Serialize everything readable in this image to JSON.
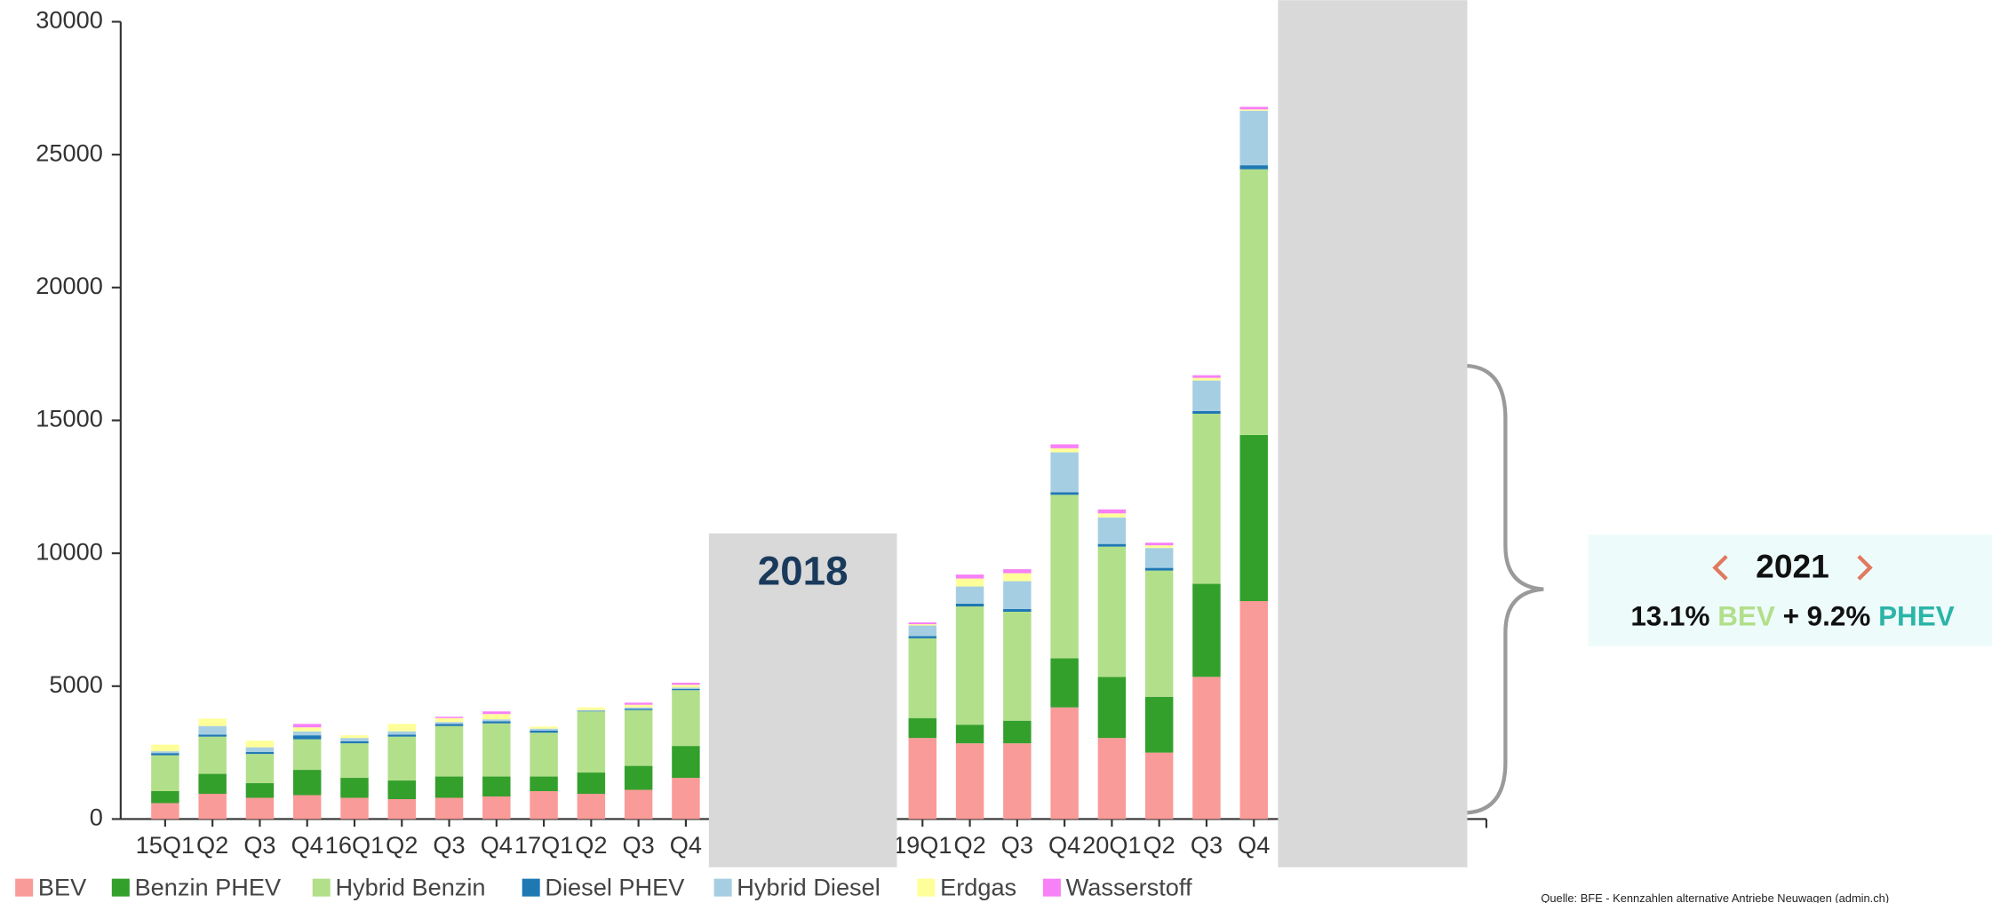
{
  "chart_data": {
    "type": "bar",
    "stacked": true,
    "categories": [
      "15Q1",
      "Q2",
      "Q3",
      "Q4",
      "16Q1",
      "Q2",
      "Q3",
      "Q4",
      "17Q1",
      "Q2",
      "Q3",
      "Q4",
      null,
      null,
      null,
      null,
      "19Q1",
      "Q2",
      "Q3",
      "Q4",
      "20Q1",
      "Q2",
      "Q3",
      "Q4",
      null,
      null,
      null,
      null
    ],
    "series": [
      {
        "name": "BEV",
        "color": "#f99b98",
        "values": [
          600,
          950,
          800,
          900,
          800,
          750,
          800,
          850,
          1050,
          950,
          1100,
          1550,
          null,
          null,
          null,
          null,
          3050,
          2850,
          2850,
          4200,
          3050,
          2500,
          5350,
          8200,
          null,
          null,
          null,
          null
        ]
      },
      {
        "name": "Benzin PHEV",
        "color": "#33a02c",
        "values": [
          450,
          750,
          550,
          950,
          750,
          700,
          800,
          750,
          550,
          800,
          900,
          1200,
          null,
          null,
          null,
          null,
          750,
          700,
          850,
          1850,
          2300,
          2100,
          3500,
          6250,
          null,
          null,
          null,
          null
        ]
      },
      {
        "name": "Hybrid Benzin",
        "color": "#b2df8a",
        "values": [
          1350,
          1400,
          1100,
          1150,
          1300,
          1650,
          1900,
          2000,
          1650,
          2300,
          2100,
          2100,
          null,
          null,
          null,
          null,
          3000,
          4450,
          4100,
          6150,
          4900,
          4750,
          6400,
          10000,
          null,
          null,
          null,
          null
        ]
      },
      {
        "name": "Diesel PHEV",
        "color": "#1f78b4",
        "values": [
          80,
          80,
          70,
          150,
          80,
          80,
          80,
          80,
          80,
          20,
          50,
          50,
          null,
          null,
          null,
          null,
          80,
          100,
          100,
          100,
          100,
          100,
          100,
          150,
          null,
          null,
          null,
          null
        ]
      },
      {
        "name": "Hybrid Diesel",
        "color": "#a6cee3",
        "values": [
          70,
          320,
          180,
          150,
          120,
          120,
          70,
          70,
          70,
          30,
          50,
          50,
          null,
          null,
          null,
          null,
          400,
          650,
          1050,
          1500,
          1000,
          750,
          1150,
          2050,
          null,
          null,
          null,
          null
        ]
      },
      {
        "name": "Erdgas",
        "color": "#ffff99",
        "values": [
          250,
          280,
          250,
          150,
          100,
          280,
          150,
          200,
          80,
          100,
          100,
          100,
          null,
          null,
          null,
          null,
          50,
          300,
          300,
          150,
          150,
          100,
          100,
          50,
          null,
          null,
          null,
          null
        ]
      },
      {
        "name": "Wasserstoff",
        "color": "#f781f7",
        "values": [
          0,
          0,
          0,
          130,
          0,
          0,
          50,
          100,
          0,
          0,
          80,
          80,
          null,
          null,
          null,
          null,
          70,
          150,
          150,
          150,
          150,
          100,
          100,
          100,
          null,
          null,
          null,
          null
        ]
      }
    ],
    "ylim": [
      0,
      30000
    ],
    "yticks": [
      0,
      5000,
      10000,
      15000,
      20000,
      25000,
      30000
    ],
    "legend": "bottom"
  },
  "overlay": {
    "year_label": "2018"
  },
  "info_box": {
    "year": "2021",
    "bev_share": "13.1%",
    "bev": "BEV",
    "plus_phev_share": "+ 9.2%",
    "phev": "PHEV"
  },
  "source": "Quelle: BFE - Kennzahlen alternative Antriebe Neuwagen (admin.ch)"
}
